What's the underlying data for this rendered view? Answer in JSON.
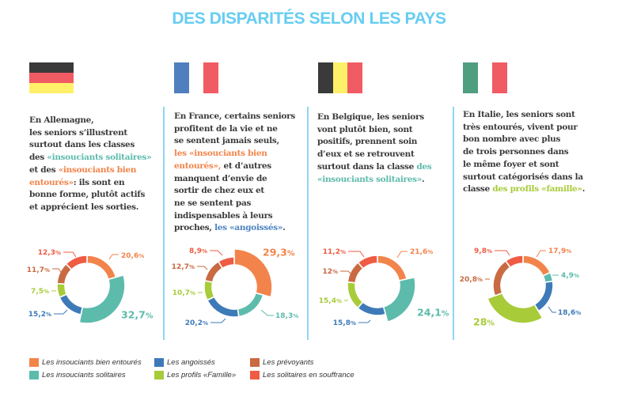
{
  "title": "DES DISPARITÉS SELON LES PAYS",
  "text_colors": {
    "dark": "#3C3A3A",
    "teal": "#5DBBAC",
    "orange": "#F2844B",
    "blue": "#4C83C0",
    "green": "#A8CB3A"
  },
  "countries": [
    {
      "name": "Allemagne",
      "flag": {
        "orientation": "horizontal",
        "stripes": [
          "#3A3A3A",
          "#F15B63",
          "#FFF06A"
        ]
      },
      "paragraph": [
        [
          {
            "text": "En Allemagne,",
            "tone": "dark"
          }
        ],
        [
          {
            "text": "les seniors s’illustrent",
            "tone": "dark"
          }
        ],
        [
          {
            "text": "surtout dans les classes",
            "tone": "dark"
          }
        ],
        [
          {
            "text": "des ",
            "tone": "dark"
          },
          {
            "text": "«insouciants solitaires»",
            "tone": "teal"
          }
        ],
        [
          {
            "text": "et des ",
            "tone": "dark"
          },
          {
            "text": "«insouciants bien",
            "tone": "orange"
          }
        ],
        [
          {
            "text": "entourés»",
            "tone": "orange"
          },
          {
            "text": ": ils sont en",
            "tone": "dark"
          }
        ],
        [
          {
            "text": "bonne forme, plutôt actifs",
            "tone": "dark"
          }
        ],
        [
          {
            "text": "et apprécient les sorties.",
            "tone": "dark"
          }
        ]
      ]
    },
    {
      "name": "France",
      "flag": {
        "orientation": "vertical",
        "stripes": [
          "#4F7FBE",
          "#FFFFFF",
          "#F15B63"
        ]
      },
      "paragraph": [
        [
          {
            "text": "En France, certains seniors",
            "tone": "dark"
          }
        ],
        [
          {
            "text": "profitent de la vie et ne",
            "tone": "dark"
          }
        ],
        [
          {
            "text": "se sentent jamais seuls,",
            "tone": "dark"
          }
        ],
        [
          {
            "text": "les «insouciants bien",
            "tone": "orange"
          }
        ],
        [
          {
            "text": "entourés»,",
            "tone": "orange"
          },
          {
            "text": " et d’autres",
            "tone": "dark"
          }
        ],
        [
          {
            "text": "manquent d’envie de",
            "tone": "dark"
          }
        ],
        [
          {
            "text": "sortir de chez eux et",
            "tone": "dark"
          }
        ],
        [
          {
            "text": "ne se sentent pas",
            "tone": "dark"
          }
        ],
        [
          {
            "text": "indispensables à leurs",
            "tone": "dark"
          }
        ],
        [
          {
            "text": "proches, ",
            "tone": "dark"
          },
          {
            "text": "les «angoissés»",
            "tone": "blue"
          },
          {
            "text": ".",
            "tone": "dark"
          }
        ]
      ]
    },
    {
      "name": "Belgique",
      "flag": {
        "orientation": "vertical",
        "stripes": [
          "#3A3A3A",
          "#FFF06A",
          "#F15B63"
        ]
      },
      "paragraph": [
        [
          {
            "text": "En Belgique, les seniors",
            "tone": "dark"
          }
        ],
        [
          {
            "text": "vont plutôt bien, sont",
            "tone": "dark"
          }
        ],
        [
          {
            "text": "positifs, prennent soin",
            "tone": "dark"
          }
        ],
        [
          {
            "text": "d’eux et se retrouvent",
            "tone": "dark"
          }
        ],
        [
          {
            "text": "surtout dans la classe ",
            "tone": "dark"
          },
          {
            "text": "des",
            "tone": "teal"
          }
        ],
        [
          {
            "text": "«insouciants solitaires»",
            "tone": "teal"
          },
          {
            "text": ".",
            "tone": "dark"
          }
        ]
      ]
    },
    {
      "name": "Italie",
      "flag": {
        "orientation": "vertical",
        "stripes": [
          "#4F9E7F",
          "#FFFFFF",
          "#F15B63"
        ]
      },
      "paragraph": [
        [
          {
            "text": "En Italie, les seniors sont",
            "tone": "dark"
          }
        ],
        [
          {
            "text": "très entourés, vivent pour",
            "tone": "dark"
          }
        ],
        [
          {
            "text": "bon nombre avec plus",
            "tone": "dark"
          }
        ],
        [
          {
            "text": "de trois personnes dans",
            "tone": "dark"
          }
        ],
        [
          {
            "text": "le même foyer et sont",
            "tone": "dark"
          }
        ],
        [
          {
            "text": "surtout catégorisés dans la",
            "tone": "dark"
          }
        ],
        [
          {
            "text": "classe ",
            "tone": "dark"
          },
          {
            "text": "des profils «famille»",
            "tone": "green"
          },
          {
            "text": ".",
            "tone": "dark"
          }
        ]
      ]
    }
  ],
  "legend": [
    {
      "label": "Les insouciants bien entourés",
      "color": "#F2844B"
    },
    {
      "label": "Les angoissés",
      "color": "#3E7AB8"
    },
    {
      "label": "Les prévoyants",
      "color": "#C96A42"
    },
    {
      "label": "Les insouciants solitaires",
      "color": "#5DBBAC"
    },
    {
      "label": "Les profils «Famille»",
      "color": "#A8CB3A"
    },
    {
      "label": "Les solitaires en souffrance",
      "color": "#EF5B43"
    }
  ],
  "chart_data": [
    {
      "type": "pie",
      "style": "donut",
      "title": "Allemagne",
      "categories": [
        "Les insouciants bien entourés",
        "Les insouciants solitaires",
        "Les angoissés",
        "Les profils «Famille»",
        "Les prévoyants",
        "Les solitaires en souffrance"
      ],
      "colors": [
        "#F2844B",
        "#5DBBAC",
        "#3E7AB8",
        "#A8CB3A",
        "#C96A42",
        "#EF5B43"
      ],
      "values": [
        20.6,
        32.7,
        15.2,
        7.5,
        11.7,
        12.3
      ],
      "value_labels": [
        "20,6",
        "32,7",
        "15,2",
        "7,5",
        "11,7",
        "12,3"
      ],
      "unit": "%",
      "emphasized_category": "Les insouciants solitaires"
    },
    {
      "type": "pie",
      "style": "donut",
      "title": "France",
      "categories": [
        "Les insouciants bien entourés",
        "Les insouciants solitaires",
        "Les angoissés",
        "Les profils «Famille»",
        "Les prévoyants",
        "Les solitaires en souffrance"
      ],
      "colors": [
        "#F2844B",
        "#5DBBAC",
        "#3E7AB8",
        "#A8CB3A",
        "#C96A42",
        "#EF5B43"
      ],
      "values": [
        29.3,
        18.3,
        20.2,
        10.7,
        12.7,
        8.9
      ],
      "value_labels": [
        "29,3",
        "18,3",
        "20,2",
        "10,7",
        "12,7",
        "8,9"
      ],
      "unit": "%",
      "emphasized_category": "Les insouciants bien entourés"
    },
    {
      "type": "pie",
      "style": "donut",
      "title": "Belgique",
      "categories": [
        "Les insouciants bien entourés",
        "Les insouciants solitaires",
        "Les angoissés",
        "Les profils «Famille»",
        "Les prévoyants",
        "Les solitaires en souffrance"
      ],
      "colors": [
        "#F2844B",
        "#5DBBAC",
        "#3E7AB8",
        "#A8CB3A",
        "#C96A42",
        "#EF5B43"
      ],
      "values": [
        21.6,
        24.1,
        15.8,
        15.4,
        12,
        11.2
      ],
      "value_labels": [
        "21,6",
        "24,1",
        "15,8",
        "15,4",
        "12",
        "11,2"
      ],
      "unit": "%",
      "emphasized_category": "Les insouciants solitaires"
    },
    {
      "type": "pie",
      "style": "donut",
      "title": "Italie",
      "categories": [
        "Les insouciants bien entourés",
        "Les insouciants solitaires",
        "Les angoissés",
        "Les profils «Famille»",
        "Les prévoyants",
        "Les solitaires en souffrance"
      ],
      "colors": [
        "#F2844B",
        "#5DBBAC",
        "#3E7AB8",
        "#A8CB3A",
        "#C96A42",
        "#EF5B43"
      ],
      "values": [
        17.9,
        4.9,
        18.6,
        28,
        20.8,
        9.8
      ],
      "value_labels": [
        "17,9",
        "4,9",
        "18,6",
        "28",
        "20,8",
        "9,8"
      ],
      "unit": "%",
      "emphasized_category": "Les profils «Famille»"
    }
  ]
}
